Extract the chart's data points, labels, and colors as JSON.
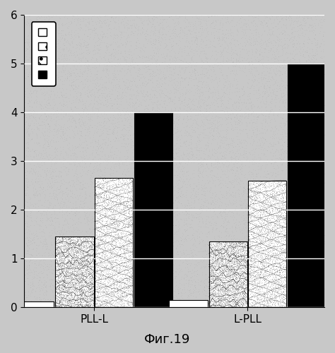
{
  "groups": [
    "PLL-L",
    "L-PLL"
  ],
  "values": [
    [
      0.12,
      1.45,
      2.65,
      4.0
    ],
    [
      0.15,
      1.35,
      2.6,
      5.0
    ]
  ],
  "bar_width": 0.55,
  "group_positions": [
    1.0,
    3.2
  ],
  "bar_offsets": [
    -0.85,
    -0.28,
    0.28,
    0.85
  ],
  "ylim": [
    0,
    6
  ],
  "yticks": [
    0,
    1,
    2,
    3,
    4,
    5,
    6
  ],
  "caption": "Фиг.19",
  "background_color": "#c8c8c8",
  "grid_color": "#ffffff",
  "caption_fontsize": 13,
  "tick_fontsize": 11,
  "xlim": [
    0.0,
    4.3
  ]
}
